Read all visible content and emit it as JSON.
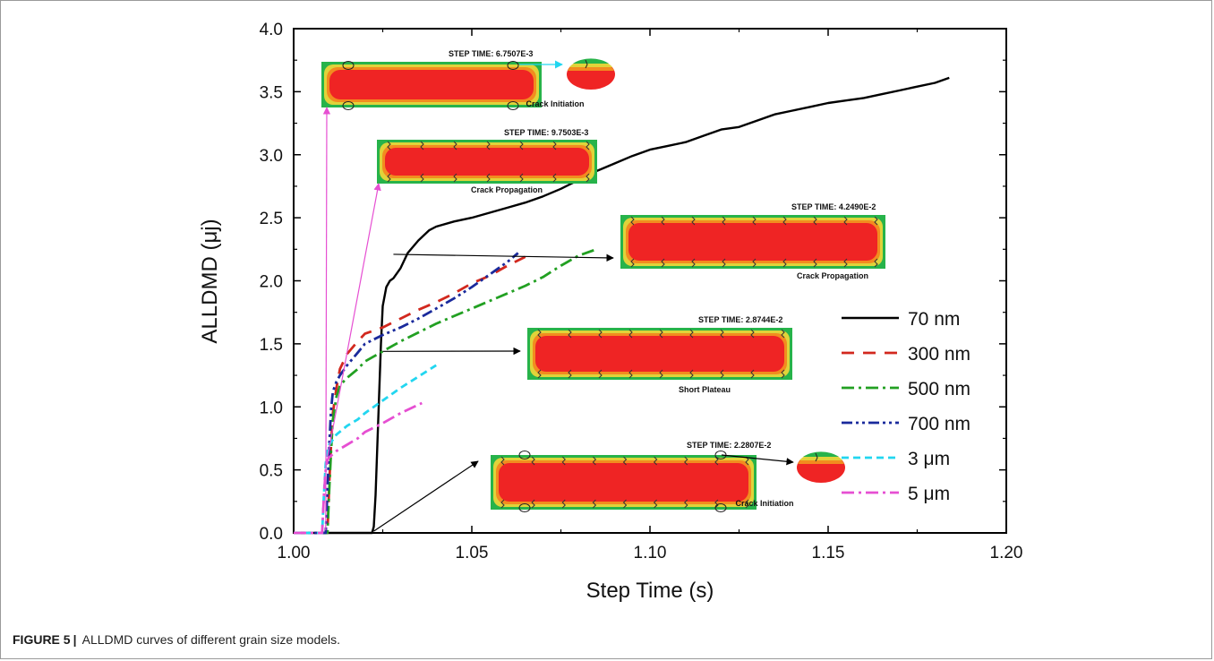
{
  "chart_data": {
    "type": "line",
    "xlabel": "Step Time (s)",
    "ylabel": "ALLDMD (μj)",
    "xlim": [
      1.0,
      1.2
    ],
    "ylim": [
      0.0,
      4.0
    ],
    "x_ticks": [
      "1.00",
      "1.05",
      "1.10",
      "1.15",
      "1.20"
    ],
    "y_ticks": [
      "0.0",
      "0.5",
      "1.0",
      "1.5",
      "2.0",
      "2.5",
      "3.0",
      "3.5",
      "4.0"
    ],
    "legend_position": "right",
    "series": [
      {
        "name": "70 nm",
        "color": "#000000",
        "dash": "solid",
        "x": [
          1.0,
          1.022,
          1.0225,
          1.023,
          1.0235,
          1.024,
          1.0245,
          1.025,
          1.026,
          1.027,
          1.028,
          1.03,
          1.032,
          1.035,
          1.038,
          1.04,
          1.045,
          1.05,
          1.055,
          1.06,
          1.065,
          1.07,
          1.075,
          1.08,
          1.085,
          1.09,
          1.095,
          1.1,
          1.105,
          1.11,
          1.115,
          1.12,
          1.125,
          1.13,
          1.135,
          1.14,
          1.145,
          1.15,
          1.155,
          1.16,
          1.165,
          1.17,
          1.175,
          1.18,
          1.184
        ],
        "y": [
          0.0,
          0.0,
          0.05,
          0.3,
          0.7,
          1.1,
          1.5,
          1.8,
          1.95,
          2.0,
          2.02,
          2.1,
          2.22,
          2.32,
          2.4,
          2.43,
          2.47,
          2.5,
          2.54,
          2.58,
          2.62,
          2.67,
          2.73,
          2.8,
          2.87,
          2.93,
          2.99,
          3.04,
          3.07,
          3.1,
          3.15,
          3.2,
          3.22,
          3.27,
          3.32,
          3.35,
          3.38,
          3.41,
          3.43,
          3.45,
          3.48,
          3.51,
          3.54,
          3.57,
          3.61
        ]
      },
      {
        "name": "300 nm",
        "color": "#d2281e",
        "dash": "long",
        "x": [
          1.0,
          1.0095,
          1.01,
          1.0105,
          1.011,
          1.012,
          1.013,
          1.015,
          1.018,
          1.02,
          1.025,
          1.03,
          1.035,
          1.04,
          1.045,
          1.05,
          1.055,
          1.06,
          1.065
        ],
        "y": [
          0.0,
          0.0,
          0.4,
          0.7,
          0.95,
          1.15,
          1.3,
          1.42,
          1.52,
          1.58,
          1.63,
          1.7,
          1.77,
          1.83,
          1.9,
          1.98,
          2.04,
          2.12,
          2.19
        ]
      },
      {
        "name": "500 nm",
        "color": "#22a022",
        "dash": "dashdot",
        "x": [
          1.0,
          1.0095,
          1.01,
          1.0105,
          1.011,
          1.012,
          1.013,
          1.015,
          1.018,
          1.02,
          1.025,
          1.03,
          1.035,
          1.04,
          1.045,
          1.05,
          1.055,
          1.06,
          1.065,
          1.07,
          1.075,
          1.08,
          1.085
        ],
        "y": [
          0.0,
          0.0,
          0.35,
          0.65,
          0.9,
          1.08,
          1.17,
          1.23,
          1.3,
          1.36,
          1.44,
          1.52,
          1.59,
          1.66,
          1.72,
          1.78,
          1.84,
          1.9,
          1.96,
          2.03,
          2.12,
          2.2,
          2.25
        ]
      },
      {
        "name": "700 nm",
        "color": "#1a2a9c",
        "dash": "dashdotdot",
        "x": [
          1.0,
          1.009,
          1.0095,
          1.01,
          1.0105,
          1.011,
          1.012,
          1.013,
          1.015,
          1.018,
          1.02,
          1.025,
          1.03,
          1.035,
          1.04,
          1.045,
          1.05,
          1.055,
          1.06,
          1.063
        ],
        "y": [
          0.0,
          0.0,
          0.35,
          0.7,
          0.98,
          1.12,
          1.2,
          1.25,
          1.33,
          1.43,
          1.5,
          1.57,
          1.63,
          1.7,
          1.78,
          1.86,
          1.95,
          2.05,
          2.15,
          2.22
        ]
      },
      {
        "name": "3 μm",
        "color": "#22d6f0",
        "dash": "short",
        "x": [
          1.0,
          1.008,
          1.0085,
          1.009,
          1.0095,
          1.01,
          1.012,
          1.015,
          1.018,
          1.02,
          1.025,
          1.03,
          1.035,
          1.04
        ],
        "y": [
          0.0,
          0.0,
          0.3,
          0.55,
          0.65,
          0.7,
          0.78,
          0.85,
          0.9,
          0.95,
          1.05,
          1.15,
          1.24,
          1.33
        ]
      },
      {
        "name": "5 μm",
        "color": "#e64fd2",
        "dash": "dashdot",
        "x": [
          1.0,
          1.008,
          1.0085,
          1.009,
          1.0095,
          1.01,
          1.012,
          1.015,
          1.018,
          1.02,
          1.025,
          1.03,
          1.036
        ],
        "y": [
          0.0,
          0.0,
          0.3,
          0.5,
          0.58,
          0.6,
          0.65,
          0.7,
          0.75,
          0.8,
          0.87,
          0.95,
          1.03
        ]
      }
    ],
    "annotations": [
      {
        "step_time": "STEP TIME: 6.7507E-3",
        "label": "Crack Initiation",
        "arrow_color": "#e64fd2",
        "arrow_to": [
          1.009,
          0.02
        ],
        "zoom": true
      },
      {
        "step_time": "STEP TIME: 9.7503E-3",
        "label": "Crack Propagation",
        "arrow_color": "#e64fd2",
        "arrow_to": [
          1.0095,
          0.6
        ],
        "zoom": false
      },
      {
        "step_time": "STEP TIME: 4.2490E-2",
        "label": "Crack Propagation",
        "arrow_color": "#000000",
        "arrow_to": [
          1.028,
          2.21
        ],
        "zoom": false
      },
      {
        "step_time": "STEP TIME: 2.8744E-2",
        "label": "Short Plateau",
        "arrow_color": "#000000",
        "arrow_to": [
          1.025,
          1.44
        ],
        "zoom": false
      },
      {
        "step_time": "STEP TIME: 2.2807E-2",
        "label": "Crack Initiation",
        "arrow_color": "#000000",
        "arrow_to": [
          1.022,
          0.0
        ],
        "zoom": true
      }
    ]
  },
  "caption": {
    "label": "FIGURE 5",
    "separator": "|",
    "text": "ALLDMD curves of different grain size models."
  }
}
